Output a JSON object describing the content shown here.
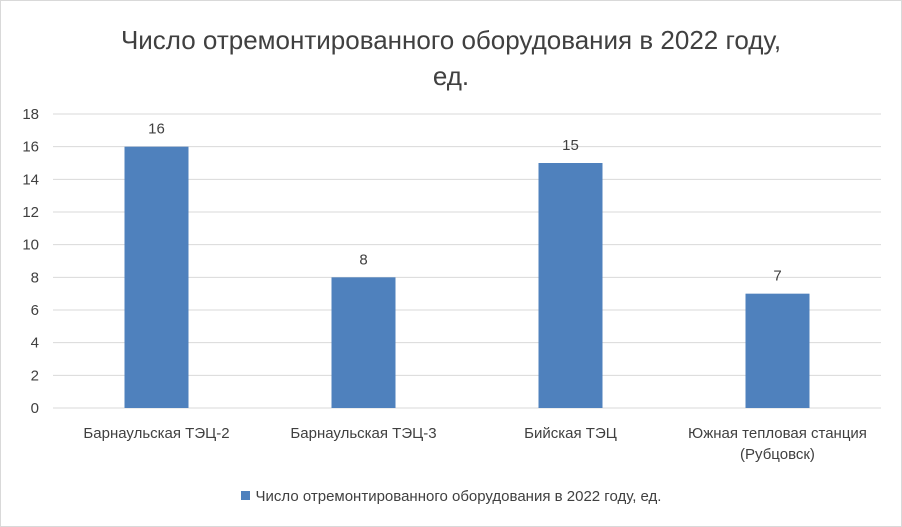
{
  "chart_data": {
    "type": "bar",
    "title_line1": "Число отремонтированного оборудования в 2022 году,",
    "title_line2": "ед.",
    "categories": [
      [
        "Барнаульская ТЭЦ-2"
      ],
      [
        "Барнаульская ТЭЦ-3"
      ],
      [
        "Бийская ТЭЦ"
      ],
      [
        "Южная тепловая станция",
        "(Рубцовск)"
      ]
    ],
    "series": [
      {
        "name": "Число отремонтированного оборудования в 2022 году, ед.",
        "values": [
          16,
          8,
          15,
          7
        ]
      }
    ],
    "ylim": [
      0,
      18
    ],
    "yticks": [
      0,
      2,
      4,
      6,
      8,
      10,
      12,
      14,
      16,
      18
    ],
    "grid": true,
    "legend_position": "bottom",
    "bar_color": "#4f81bd"
  }
}
